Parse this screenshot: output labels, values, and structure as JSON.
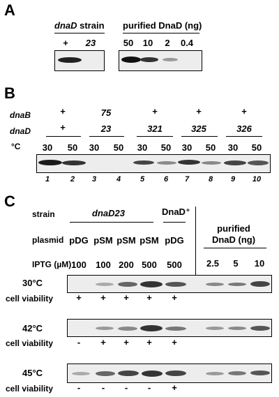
{
  "panelA": {
    "letter": "A",
    "strain_header": "dnaD strain",
    "strain_header_italic": "dnaD",
    "strain_header_rest": " strain",
    "strain_lanes": [
      "+",
      "23"
    ],
    "purified_header": "purified DnaD (ng)",
    "purified_lanes": [
      "50",
      "10",
      "2",
      "0.4"
    ]
  },
  "panelB": {
    "letter": "B",
    "row_dnaB_label": "dnaB",
    "row_dnaD_label": "dnaD",
    "temp_label": "°C",
    "dnaB_values": [
      "+",
      "75",
      "+",
      "+",
      "+"
    ],
    "dnaD_values": [
      "+",
      "23",
      "321",
      "325",
      "326"
    ],
    "temps": [
      "30",
      "50",
      "30",
      "50",
      "30",
      "50",
      "30",
      "50",
      "30",
      "50"
    ],
    "lane_numbers": [
      "1",
      "2",
      "3",
      "4",
      "5",
      "6",
      "7",
      "8",
      "9",
      "10"
    ]
  },
  "panelC": {
    "letter": "C",
    "strain_label": "strain",
    "strain_group": "dnaD23",
    "strain_wt": "DnaD⁺",
    "plasmid_label": "plasmid",
    "plasmids": [
      "pDG",
      "pSM",
      "pSM",
      "pSM",
      "pDG"
    ],
    "iptg_label": "IPTG (µM)",
    "iptg_values": [
      "100",
      "100",
      "200",
      "500",
      "500"
    ],
    "purified_header_1": "purified",
    "purified_header_2": "DnaD (ng)",
    "purified_values": [
      "2.5",
      "5",
      "10"
    ],
    "viability_label": "cell viability",
    "blots": [
      {
        "temp": "30°C",
        "viability": [
          "+",
          "+",
          "+",
          "+",
          "+"
        ]
      },
      {
        "temp": "42°C",
        "viability": [
          "-",
          "+",
          "+",
          "+",
          "+"
        ]
      },
      {
        "temp": "45°C",
        "viability": [
          "-",
          "-",
          "-",
          "-",
          "+"
        ]
      }
    ]
  }
}
